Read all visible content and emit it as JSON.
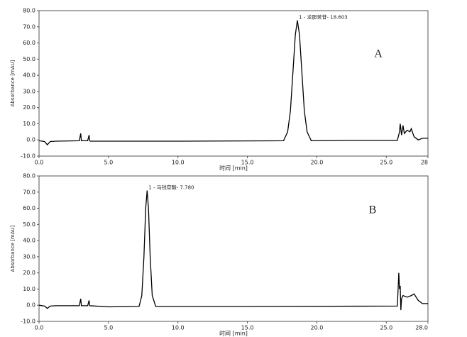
{
  "chart_data": [
    {
      "type": "line",
      "panel_label": "A",
      "annotation": "1 - 龙胆苦苷- 18.603",
      "annotation_x": 18.603,
      "xlabel": "时间 [min]",
      "ylabel": "Absorbance [mAU]",
      "color": "#000000",
      "xlim": [
        0,
        28
      ],
      "ylim": [
        -10,
        80
      ],
      "xticks": [
        {
          "value": 0,
          "label": "0.0"
        },
        {
          "value": 5,
          "label": "5.0"
        },
        {
          "value": 10,
          "label": "10.0"
        },
        {
          "value": 15,
          "label": "15.0"
        },
        {
          "value": 20,
          "label": "20.0"
        },
        {
          "value": 25,
          "label": "25.0"
        },
        28
      ],
      "yticks": [
        {
          "value": -10,
          "label": "-10.0"
        },
        {
          "value": 0,
          "label": "0.0"
        },
        {
          "value": 10,
          "label": "10.0"
        },
        {
          "value": 20,
          "label": "20.0"
        },
        {
          "value": 30,
          "label": "30.0"
        },
        {
          "value": 40,
          "label": "40.0"
        },
        {
          "value": 50,
          "label": "50.0"
        },
        {
          "value": 60,
          "label": "60.0"
        },
        {
          "value": 70,
          "label": "70.0"
        },
        {
          "value": 80,
          "label": "80.0"
        }
      ],
      "x": [
        0,
        0.4,
        0.6,
        0.8,
        1.2,
        2.9,
        3.0,
        3.05,
        3.1,
        3.5,
        3.6,
        3.65,
        3.7,
        5,
        10,
        15,
        17.6,
        17.9,
        18.1,
        18.3,
        18.45,
        18.6,
        18.75,
        18.9,
        19.1,
        19.3,
        19.6,
        22,
        25.8,
        25.95,
        26.0,
        26.1,
        26.2,
        26.3,
        26.5,
        26.7,
        26.8,
        27.0,
        27.3,
        27.6,
        28
      ],
      "values": [
        -0.5,
        -1,
        -3,
        -1,
        -0.8,
        -0.5,
        4,
        -0.5,
        -0.5,
        -0.5,
        3,
        -0.5,
        -0.8,
        -0.8,
        -0.8,
        -0.6,
        -0.5,
        5,
        18,
        45,
        65,
        74,
        65,
        45,
        18,
        5,
        -0.5,
        -0.3,
        -0.3,
        5,
        10,
        3,
        9,
        4,
        6,
        5,
        7,
        2,
        0,
        1,
        1
      ]
    },
    {
      "type": "line",
      "panel_label": "B",
      "annotation": "1 - 马钱苷酸- 7.780",
      "annotation_x": 7.78,
      "xlabel": "时间 [min]",
      "ylabel": "Absorbance [mAU]",
      "color": "#000000",
      "xlim": [
        0,
        28
      ],
      "ylim": [
        -10,
        80
      ],
      "xticks": [
        {
          "value": 0,
          "label": "0.0"
        },
        {
          "value": 5,
          "label": "5.0"
        },
        {
          "value": 10,
          "label": "10.0"
        },
        {
          "value": 15,
          "label": "15.0"
        },
        {
          "value": 20,
          "label": "20.0"
        },
        {
          "value": 25,
          "label": "25.0"
        },
        {
          "value": 28,
          "label": "28.0"
        }
      ],
      "yticks": [
        {
          "value": -10,
          "label": "-10.0"
        },
        {
          "value": 0,
          "label": "0.0"
        },
        {
          "value": 10,
          "label": "10.0"
        },
        {
          "value": 20,
          "label": "20.0"
        },
        {
          "value": 30,
          "label": "30.0"
        },
        {
          "value": 40,
          "label": "40.0"
        },
        {
          "value": 50,
          "label": "50.0"
        },
        {
          "value": 60,
          "label": "60.0"
        },
        {
          "value": 70,
          "label": "70.0"
        },
        {
          "value": 80,
          "label": "80.0"
        }
      ],
      "x": [
        0,
        0.4,
        0.6,
        0.8,
        1.2,
        2.9,
        3.0,
        3.05,
        3.5,
        3.6,
        3.65,
        5,
        7.2,
        7.4,
        7.55,
        7.68,
        7.78,
        7.88,
        8.0,
        8.15,
        8.4,
        15,
        25.8,
        25.9,
        25.95,
        26.0,
        26.05,
        26.1,
        26.2,
        26.5,
        26.8,
        27.0,
        27.3,
        27.6,
        28
      ],
      "values": [
        0,
        -0.5,
        -2,
        -0.5,
        -0.3,
        -0.3,
        4,
        -0.3,
        -0.3,
        3,
        -0.3,
        -1,
        -0.8,
        6,
        30,
        60,
        71,
        60,
        30,
        6,
        -0.8,
        -0.8,
        -0.5,
        20,
        10,
        12,
        -3,
        4,
        6,
        5,
        6,
        7,
        3,
        1,
        1
      ]
    }
  ]
}
